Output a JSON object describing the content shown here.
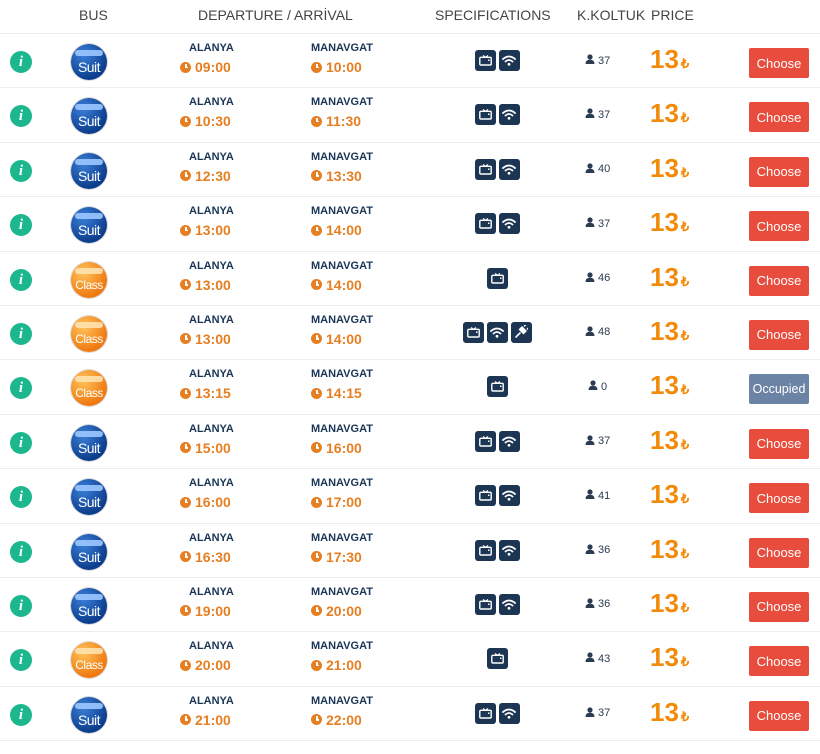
{
  "header": {
    "bus": "BUS",
    "departure_arrival": "DEPARTURE / ARRİVAL",
    "specifications": "SPECIFICATIONS",
    "seats": "K.KOLTUK",
    "price": "PRICE"
  },
  "icons": {
    "info": "info-icon",
    "clock": "clock-icon",
    "tv": "tv-icon",
    "wifi": "wifi-icon",
    "plug": "power-plug-icon",
    "person": "person-icon"
  },
  "colors": {
    "info": "#1cb78e",
    "time": "#e67e22",
    "price": "#f28a0a",
    "choose": "#e74c3c",
    "occupied": "#6b84a6",
    "spec_bg": "#1c3553"
  },
  "trips": [
    {
      "logo": "Suit",
      "from": "ALANYA",
      "dep": "09:00",
      "to": "MANAVGAT",
      "arr": "10:00",
      "specs": [
        "tv",
        "wifi"
      ],
      "seats": "37",
      "price": "13",
      "currency": "₺",
      "action": "Choose",
      "status": "choose"
    },
    {
      "logo": "Suit",
      "from": "ALANYA",
      "dep": "10:30",
      "to": "MANAVGAT",
      "arr": "11:30",
      "specs": [
        "tv",
        "wifi"
      ],
      "seats": "37",
      "price": "13",
      "currency": "₺",
      "action": "Choose",
      "status": "choose"
    },
    {
      "logo": "Suit",
      "from": "ALANYA",
      "dep": "12:30",
      "to": "MANAVGAT",
      "arr": "13:30",
      "specs": [
        "tv",
        "wifi"
      ],
      "seats": "40",
      "price": "13",
      "currency": "₺",
      "action": "Choose",
      "status": "choose"
    },
    {
      "logo": "Suit",
      "from": "ALANYA",
      "dep": "13:00",
      "to": "MANAVGAT",
      "arr": "14:00",
      "specs": [
        "tv",
        "wifi"
      ],
      "seats": "37",
      "price": "13",
      "currency": "₺",
      "action": "Choose",
      "status": "choose"
    },
    {
      "logo": "Class",
      "from": "ALANYA",
      "dep": "13:00",
      "to": "MANAVGAT",
      "arr": "14:00",
      "specs": [
        "tv"
      ],
      "seats": "46",
      "price": "13",
      "currency": "₺",
      "action": "Choose",
      "status": "choose"
    },
    {
      "logo": "Class",
      "from": "ALANYA",
      "dep": "13:00",
      "to": "MANAVGAT",
      "arr": "14:00",
      "specs": [
        "tv",
        "wifi",
        "plug"
      ],
      "seats": "48",
      "price": "13",
      "currency": "₺",
      "action": "Choose",
      "status": "choose"
    },
    {
      "logo": "Class",
      "from": "ALANYA",
      "dep": "13:15",
      "to": "MANAVGAT",
      "arr": "14:15",
      "specs": [
        "tv"
      ],
      "seats": "0",
      "price": "13",
      "currency": "₺",
      "action": "Occupied",
      "status": "occupied"
    },
    {
      "logo": "Suit",
      "from": "ALANYA",
      "dep": "15:00",
      "to": "MANAVGAT",
      "arr": "16:00",
      "specs": [
        "tv",
        "wifi"
      ],
      "seats": "37",
      "price": "13",
      "currency": "₺",
      "action": "Choose",
      "status": "choose"
    },
    {
      "logo": "Suit",
      "from": "ALANYA",
      "dep": "16:00",
      "to": "MANAVGAT",
      "arr": "17:00",
      "specs": [
        "tv",
        "wifi"
      ],
      "seats": "41",
      "price": "13",
      "currency": "₺",
      "action": "Choose",
      "status": "choose"
    },
    {
      "logo": "Suit",
      "from": "ALANYA",
      "dep": "16:30",
      "to": "MANAVGAT",
      "arr": "17:30",
      "specs": [
        "tv",
        "wifi"
      ],
      "seats": "36",
      "price": "13",
      "currency": "₺",
      "action": "Choose",
      "status": "choose"
    },
    {
      "logo": "Suit",
      "from": "ALANYA",
      "dep": "19:00",
      "to": "MANAVGAT",
      "arr": "20:00",
      "specs": [
        "tv",
        "wifi"
      ],
      "seats": "36",
      "price": "13",
      "currency": "₺",
      "action": "Choose",
      "status": "choose"
    },
    {
      "logo": "Class",
      "from": "ALANYA",
      "dep": "20:00",
      "to": "MANAVGAT",
      "arr": "21:00",
      "specs": [
        "tv"
      ],
      "seats": "43",
      "price": "13",
      "currency": "₺",
      "action": "Choose",
      "status": "choose"
    },
    {
      "logo": "Suit",
      "from": "ALANYA",
      "dep": "21:00",
      "to": "MANAVGAT",
      "arr": "22:00",
      "specs": [
        "tv",
        "wifi"
      ],
      "seats": "37",
      "price": "13",
      "currency": "₺",
      "action": "Choose",
      "status": "choose"
    }
  ]
}
